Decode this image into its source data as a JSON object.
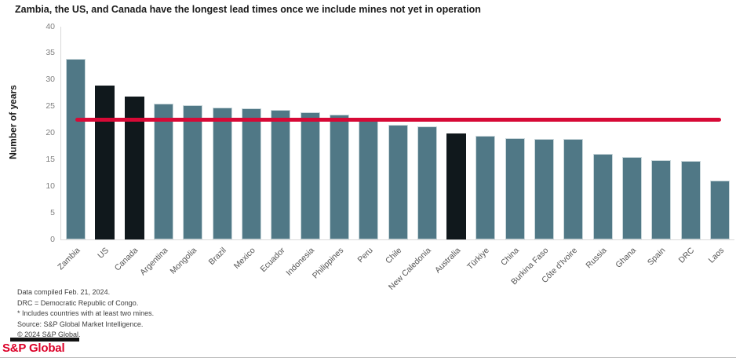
{
  "title": "Zambia, the US, and Canada have the longest lead times once we include mines not yet in operation",
  "chart_data": {
    "type": "bar",
    "title": "Zambia, the US, and Canada have the longest lead times once we include mines not yet in operation",
    "xlabel": "",
    "ylabel": "Number of years",
    "ylim": [
      0,
      40
    ],
    "yticks": [
      0,
      5,
      10,
      15,
      20,
      25,
      30,
      35,
      40
    ],
    "grid": false,
    "legend": "none",
    "categories": [
      "Zambia",
      "US",
      "Canada",
      "Argentina",
      "Mongolia",
      "Brazil",
      "Mexico",
      "Ecuador",
      "Indonesia",
      "Philippines",
      "Peru",
      "Chile",
      "New Caledonia",
      "Australia",
      "Türkiye",
      "China",
      "Burkina Faso",
      "Côte d'Ivoire",
      "Russia",
      "Ghana",
      "Spain",
      "DRC",
      "Laos"
    ],
    "values": [
      34,
      29,
      26.8,
      25.6,
      25.3,
      24.8,
      24.6,
      24.3,
      23.9,
      23.5,
      22.3,
      21.5,
      21.3,
      20,
      19.5,
      19,
      18.9,
      18.9,
      16.1,
      15.5,
      14.9,
      14.7,
      11.1
    ],
    "highlighted_countries": [
      "US",
      "Canada",
      "Australia"
    ],
    "bar_color": "#507886",
    "highlight_color": "#10181c",
    "reference_line": {
      "value": 22.5,
      "color": "#d70936"
    }
  },
  "footnotes": [
    "Data compiled Feb. 21, 2024.",
    "DRC = Democratic Republic of Congo.",
    "* Includes countries with at least two mines.",
    "Source: S&P Global Market Intelligence.",
    "© 2024 S&P Global."
  ],
  "logo": {
    "text": "S&P Global"
  }
}
